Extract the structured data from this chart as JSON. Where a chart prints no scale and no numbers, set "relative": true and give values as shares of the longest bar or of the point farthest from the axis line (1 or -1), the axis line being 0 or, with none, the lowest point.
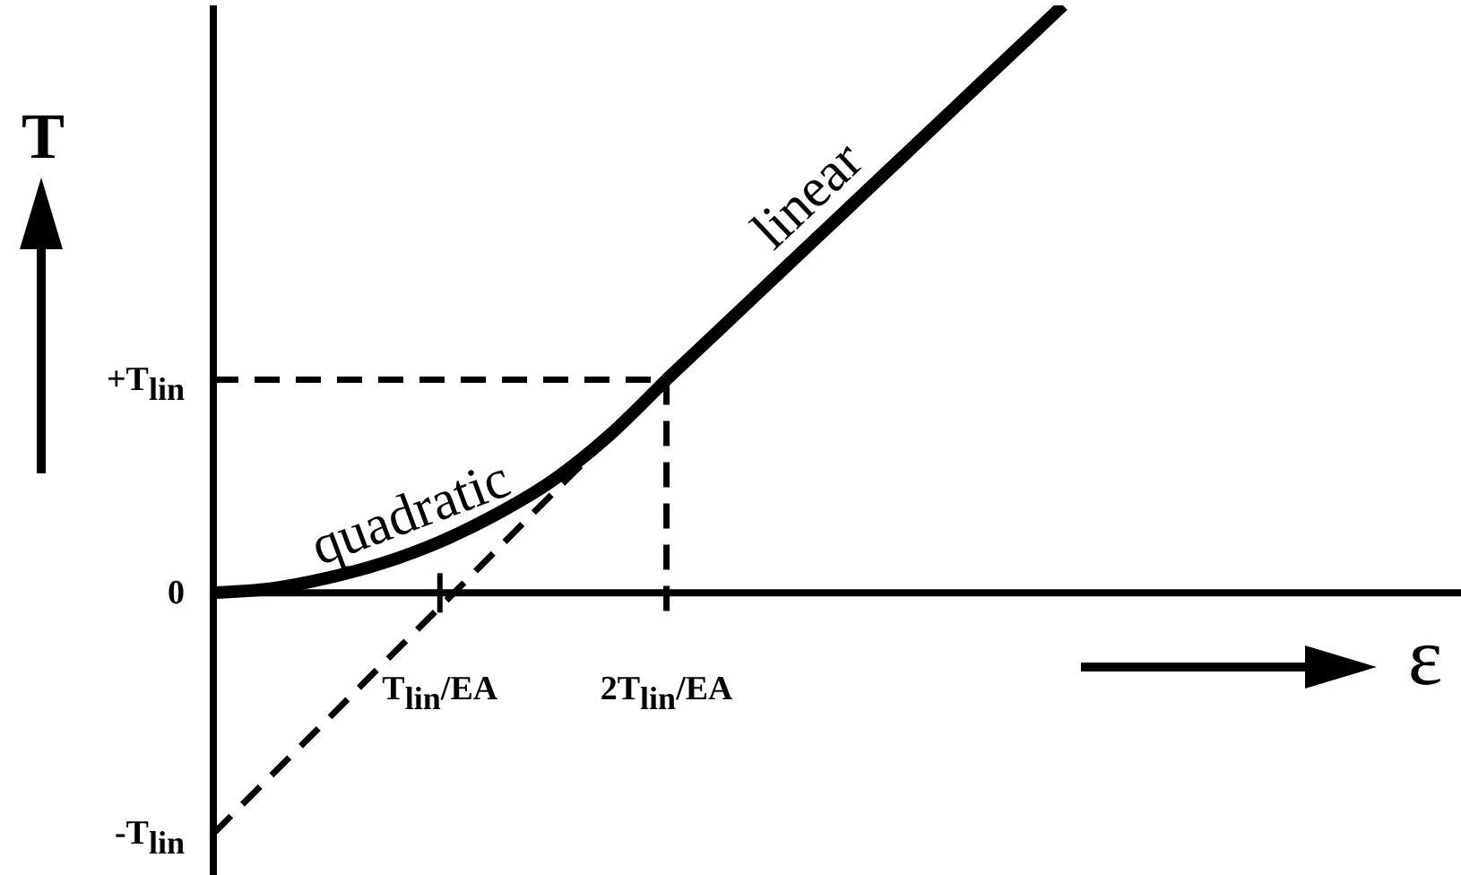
{
  "chart_data": {
    "type": "line",
    "xlabel": "ε",
    "ylabel": "T",
    "relative": true,
    "categories": [
      null,
      null,
      null,
      null,
      "T$_{lin}$/EA",
      null,
      null,
      null,
      "2T$_{lin}$/EA",
      null,
      null,
      null,
      null,
      null,
      null,
      null
    ],
    "marker": "none",
    "series": [
      {
        "name": "quadratic",
        "color": "#000000",
        "values": [
          0,
          0.007,
          0.025,
          0.051,
          0.087,
          0.134,
          0.192,
          0.269,
          0.363,
          null,
          null,
          null,
          null,
          null,
          null,
          null
        ]
      },
      {
        "name": "linear",
        "color": "#000000",
        "values": [
          null,
          null,
          null,
          null,
          null,
          null,
          null,
          null,
          0.363,
          0.454,
          0.545,
          0.636,
          0.727,
          0.818,
          0.909,
          1
        ]
      },
      {
        "color": "#000000",
        "line_style": "dashed",
        "values": [
          -0.41,
          -0.313,
          -0.217,
          -0.12,
          -0.024,
          0.073,
          0.17,
          0.266,
          0.363,
          null,
          null,
          null,
          null,
          null,
          null,
          null
        ]
      }
    ],
    "ref_lines": [
      {
        "axis": "y",
        "value": 0.363,
        "label": "+T$_{lin}$",
        "color": "#000000",
        "line_style": "dashed"
      },
      {
        "axis": "x",
        "value": "2T$_{lin}$/EA",
        "color": "#000000",
        "line_style": "dashed"
      }
    ],
    "annotations": [
      "0",
      "-T$_{lin}$"
    ]
  }
}
